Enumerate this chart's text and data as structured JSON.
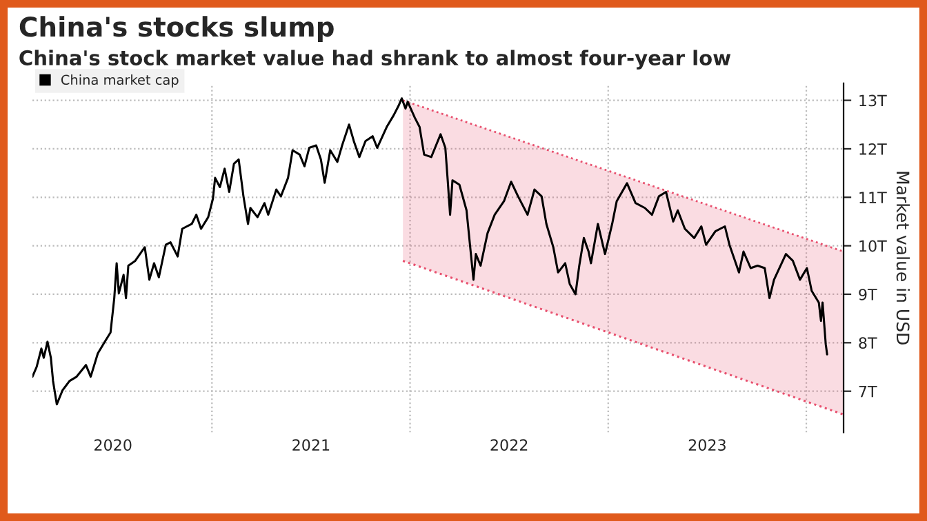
{
  "chart_data": {
    "type": "line",
    "title": "China's stocks slump",
    "subtitle": "China's stock market value had shrank to almost four-year low",
    "ylabel": "Market value in USD",
    "xlim": [
      2020.094,
      2024.188
    ],
    "ylim": [
      6.15,
      13.35
    ],
    "xticks": [
      {
        "value": 2020.5,
        "label": "2020"
      },
      {
        "value": 2021,
        "label": null
      },
      {
        "value": 2021.5,
        "label": "2021"
      },
      {
        "value": 2022,
        "label": null
      },
      {
        "value": 2022.5,
        "label": "2022"
      },
      {
        "value": 2023,
        "label": null
      },
      {
        "value": 2023.5,
        "label": "2023"
      },
      {
        "value": 2024,
        "label": null
      }
    ],
    "yticks": [
      {
        "value": 7,
        "label": "7T"
      },
      {
        "value": 8,
        "label": "8T"
      },
      {
        "value": 9,
        "label": "9T"
      },
      {
        "value": 10,
        "label": "10T"
      },
      {
        "value": 11,
        "label": "11T"
      },
      {
        "value": 12,
        "label": "12T"
      },
      {
        "value": 13,
        "label": "13T"
      }
    ],
    "grid": true,
    "legend": "top left",
    "series": [
      {
        "type": "area",
        "color": "#e8506e",
        "line_style": "dotted",
        "x": [
          2021.964,
          2024.188
        ],
        "values": [
          13.0,
          9.88
        ]
      },
      {
        "type": "line",
        "color": "#e8506e",
        "line_style": "dotted",
        "x": [
          2021.964,
          2024.188
        ],
        "values": [
          9.69,
          6.52
        ]
      },
      {
        "name": "China market cap",
        "color": "#000000",
        "line_style": "solid",
        "x": [
          2020.094,
          2020.115,
          2020.139,
          2020.151,
          2020.17,
          2020.187,
          2020.198,
          2020.217,
          2020.246,
          2020.281,
          2020.317,
          2020.364,
          2020.388,
          2020.424,
          2020.459,
          2020.488,
          2020.507,
          2020.519,
          2020.53,
          2020.554,
          2020.566,
          2020.578,
          2020.613,
          2020.661,
          2020.684,
          2020.708,
          2020.732,
          2020.767,
          2020.791,
          2020.827,
          2020.85,
          2020.898,
          2020.921,
          2020.945,
          2020.981,
          2021.005,
          2021.016,
          2021.04,
          2021.064,
          2021.087,
          2021.111,
          2021.135,
          2021.159,
          2021.182,
          2021.194,
          2021.23,
          2021.265,
          2021.284,
          2021.325,
          2021.348,
          2021.384,
          2021.407,
          2021.443,
          2021.467,
          2021.491,
          2021.526,
          2021.55,
          2021.569,
          2021.597,
          2021.633,
          2021.657,
          2021.692,
          2021.716,
          2021.744,
          2021.775,
          2021.811,
          2021.834,
          2021.882,
          2021.917,
          2021.941,
          2021.958,
          2021.977,
          2021.988,
          2022.024,
          2022.048,
          2022.071,
          2022.107,
          2022.131,
          2022.154,
          2022.178,
          2022.19,
          2022.202,
          2022.214,
          2022.249,
          2022.285,
          2022.32,
          2022.332,
          2022.356,
          2022.391,
          2022.427,
          2022.474,
          2022.51,
          2022.545,
          2022.593,
          2022.628,
          2022.664,
          2022.688,
          2022.723,
          2022.747,
          2022.783,
          2022.806,
          2022.835,
          2022.854,
          2022.877,
          2022.901,
          2022.913,
          2022.948,
          2022.984,
          2023.02,
          2023.043,
          2023.095,
          2023.138,
          2023.185,
          2023.221,
          2023.256,
          2023.292,
          2023.328,
          2023.351,
          2023.387,
          2023.434,
          2023.47,
          2023.494,
          2023.541,
          2023.589,
          2023.612,
          2023.66,
          2023.683,
          2023.719,
          2023.754,
          2023.79,
          2023.814,
          2023.837,
          2023.897,
          2023.932,
          2023.968,
          2024.003,
          2024.027,
          2024.063,
          2024.074,
          2024.082,
          2024.098,
          2024.105
        ],
        "values": [
          7.3,
          7.5,
          7.88,
          7.69,
          8.02,
          7.69,
          7.21,
          6.73,
          7.02,
          7.21,
          7.3,
          7.54,
          7.3,
          7.78,
          8.02,
          8.21,
          8.92,
          9.64,
          9.02,
          9.4,
          8.92,
          9.59,
          9.69,
          9.97,
          9.3,
          9.64,
          9.35,
          10.02,
          10.07,
          9.78,
          10.35,
          10.45,
          10.64,
          10.35,
          10.59,
          10.97,
          11.4,
          11.21,
          11.59,
          11.11,
          11.69,
          11.78,
          11.02,
          10.45,
          10.78,
          10.59,
          10.88,
          10.64,
          11.16,
          11.02,
          11.4,
          11.97,
          11.88,
          11.64,
          12.02,
          12.07,
          11.78,
          11.3,
          11.97,
          11.73,
          12.07,
          12.5,
          12.16,
          11.83,
          12.16,
          12.26,
          12.02,
          12.45,
          12.69,
          12.88,
          13.04,
          12.83,
          12.97,
          12.64,
          12.45,
          11.88,
          11.83,
          12.07,
          12.3,
          12.02,
          11.35,
          10.64,
          11.35,
          11.26,
          10.73,
          9.3,
          9.83,
          9.59,
          10.26,
          10.64,
          10.92,
          11.32,
          11.02,
          10.64,
          11.16,
          11.02,
          10.45,
          9.97,
          9.45,
          9.64,
          9.21,
          9.0,
          9.59,
          10.16,
          9.88,
          9.64,
          10.45,
          9.83,
          10.45,
          10.92,
          11.29,
          10.88,
          10.78,
          10.64,
          11.02,
          11.11,
          10.5,
          10.73,
          10.35,
          10.16,
          10.4,
          10.02,
          10.3,
          10.4,
          10.02,
          9.45,
          9.88,
          9.54,
          9.59,
          9.54,
          8.92,
          9.3,
          9.83,
          9.69,
          9.3,
          9.54,
          9.07,
          8.83,
          8.45,
          8.83,
          7.97,
          7.76
        ]
      }
    ]
  }
}
